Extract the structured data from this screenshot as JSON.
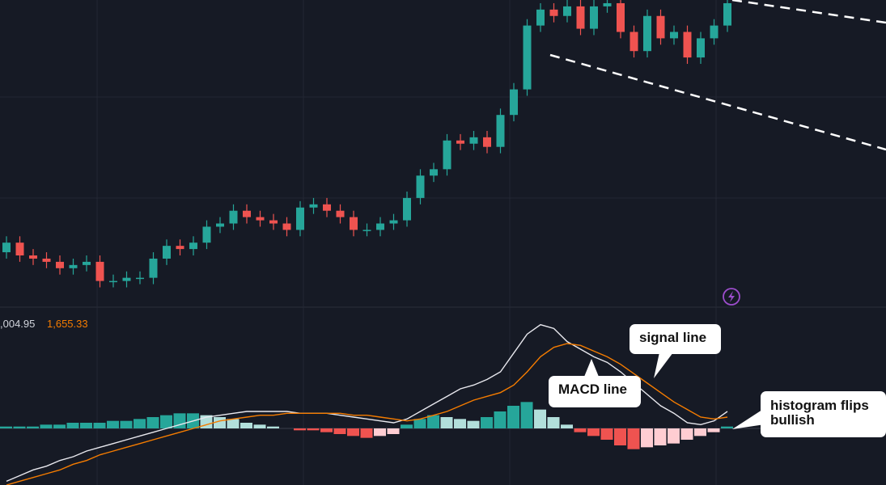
{
  "chart_data": [
    {
      "type": "candlestick",
      "ylim": [
        0,
        100
      ],
      "up_color": "#26a69a",
      "down_color": "#ef5350",
      "open": [
        21,
        24,
        20,
        19,
        18,
        16,
        17,
        18,
        12,
        12,
        13,
        13,
        19,
        23,
        22,
        24,
        29,
        30,
        34,
        32,
        31,
        30,
        28,
        35,
        36,
        34,
        32,
        28,
        28,
        30,
        31,
        38,
        45,
        47,
        56,
        55,
        57,
        54,
        64,
        72,
        92,
        97,
        95,
        98,
        91,
        98,
        99,
        90,
        84,
        95,
        88,
        90,
        82,
        88,
        92
      ],
      "high": [
        26,
        26,
        22,
        21,
        20,
        19,
        20,
        20,
        14,
        15,
        15,
        21,
        25,
        25,
        26,
        31,
        32,
        36,
        36,
        34,
        33,
        32,
        37,
        38,
        38,
        36,
        34,
        30,
        32,
        33,
        40,
        47,
        49,
        58,
        58,
        59,
        59,
        66,
        74,
        94,
        99,
        99,
        100,
        100,
        100,
        101,
        101,
        92,
        97,
        97,
        92,
        92,
        90,
        94,
        101
      ],
      "low": [
        19,
        18,
        17,
        16,
        14,
        14,
        15,
        10,
        10,
        10,
        11,
        11,
        17,
        20,
        20,
        22,
        27,
        28,
        30,
        29,
        28,
        26,
        26,
        33,
        32,
        30,
        26,
        26,
        26,
        28,
        29,
        36,
        43,
        45,
        53,
        53,
        52,
        52,
        62,
        70,
        90,
        93,
        93,
        89,
        89,
        96,
        88,
        82,
        82,
        86,
        86,
        80,
        80,
        86,
        90
      ],
      "close": [
        24,
        20,
        19,
        18,
        16,
        17,
        18,
        12,
        12,
        13,
        13,
        19,
        23,
        22,
        24,
        29,
        30,
        34,
        32,
        31,
        30,
        28,
        35,
        36,
        34,
        32,
        28,
        28,
        30,
        31,
        38,
        45,
        47,
        56,
        55,
        57,
        54,
        64,
        72,
        92,
        97,
        95,
        98,
        91,
        98,
        99,
        90,
        84,
        95,
        88,
        90,
        82,
        88,
        92,
        99
      ]
    },
    {
      "type": "macd",
      "ylim": [
        -30,
        60
      ],
      "legend_values": [
        {
          "text": ",004.95",
          "color": "#d1d4dc"
        },
        {
          "text": "1,655.33",
          "color": "#f57c00"
        }
      ],
      "series": [
        {
          "color": "#e8e8ee",
          "values": [
            -28,
            -25,
            -22,
            -20,
            -17,
            -15,
            -12,
            -10,
            -8,
            -6,
            -4,
            -2,
            0,
            2,
            4,
            6,
            7,
            8,
            9,
            9,
            9,
            9,
            8,
            8,
            8,
            7,
            6,
            5,
            4,
            3,
            5,
            9,
            13,
            17,
            21,
            23,
            26,
            30,
            40,
            50,
            55,
            53,
            46,
            42,
            38,
            35,
            30,
            24,
            18,
            12,
            8,
            3,
            2,
            4,
            9
          ]
        },
        {
          "color": "#f57c00",
          "values": [
            -30,
            -28,
            -26,
            -24,
            -22,
            -19,
            -17,
            -14,
            -12,
            -10,
            -8,
            -6,
            -4,
            -2,
            0,
            2,
            4,
            5,
            6,
            7,
            7,
            8,
            8,
            8,
            8,
            8,
            7,
            7,
            6,
            5,
            4,
            5,
            7,
            9,
            12,
            15,
            17,
            19,
            23,
            30,
            38,
            43,
            45,
            44,
            41,
            38,
            34,
            29,
            24,
            19,
            14,
            10,
            6,
            5,
            6
          ]
        }
      ],
      "histogram": {
        "values": [
          1,
          1,
          1,
          2,
          2,
          3,
          3,
          3,
          4,
          4,
          5,
          6,
          7,
          8,
          8,
          7,
          6,
          5,
          3,
          2,
          1,
          0,
          -1,
          -1,
          -2,
          -3,
          -4,
          -5,
          -4,
          -3,
          2,
          5,
          7,
          6,
          5,
          4,
          6,
          9,
          12,
          14,
          10,
          6,
          2,
          -2,
          -4,
          -6,
          -9,
          -11,
          -10,
          -9,
          -8,
          -6,
          -4,
          -2,
          1
        ],
        "colors": [
          "#26a69a",
          "#b2dfdb",
          "#ef5350",
          "#ffcdd2"
        ]
      },
      "annotations": [
        "signal line",
        "MACD line",
        "histogram flips bullish"
      ]
    }
  ]
}
